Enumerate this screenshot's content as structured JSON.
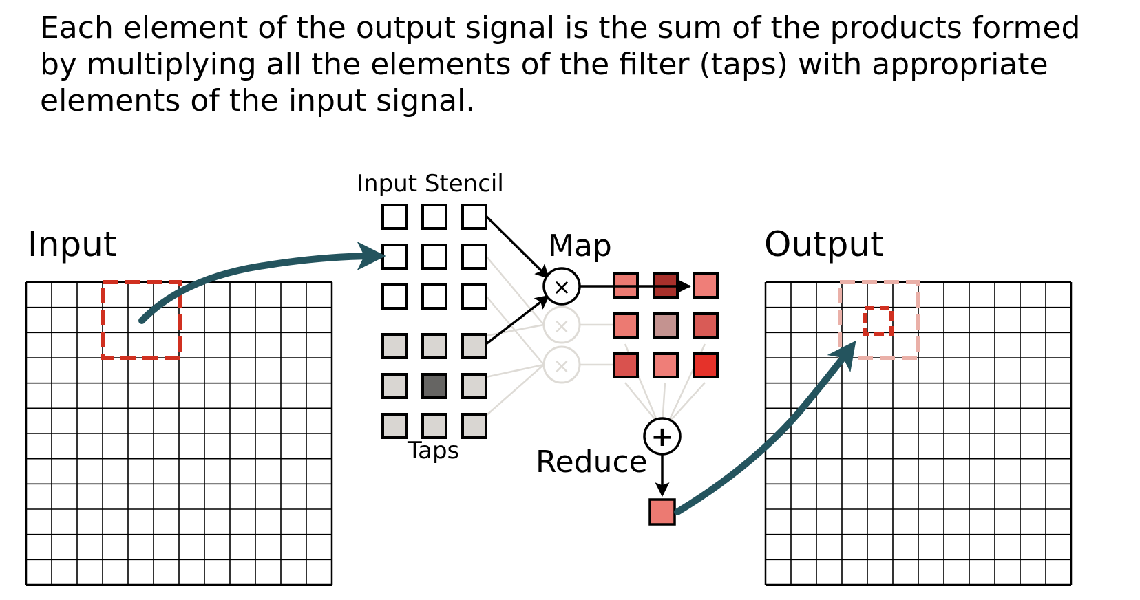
{
  "caption": {
    "lines": [
      "Each element of the output signal is the sum of the products formed",
      "by multiplying all the elements of the filter (taps) with appropriate",
      "elements of the input signal."
    ]
  },
  "labels": {
    "input": "Input",
    "input_stencil": "Input Stencil",
    "map": "Map",
    "output": "Output",
    "taps": "Taps",
    "reduce": "Reduce"
  },
  "symbols": {
    "multiply": "×",
    "add": "+"
  },
  "grids": {
    "input": {
      "rows": 12,
      "cols": 12
    },
    "output": {
      "rows": 12,
      "cols": 12
    }
  },
  "colors": {
    "arrow": "#24545e",
    "highlight_dashed": "#d03020",
    "output_faded_dashed": "#eab0a8",
    "tap_light": "#d9d6d2",
    "tap_dark": "#666563",
    "faded_line": "#dedbd6",
    "products": [
      "#ec7a72",
      "#a8302b",
      "#ef7e78",
      "#ec7a72",
      "#c49390",
      "#d95b56",
      "#d9524e",
      "#ef7e78",
      "#e5322a"
    ],
    "result": "#ec7a72"
  }
}
